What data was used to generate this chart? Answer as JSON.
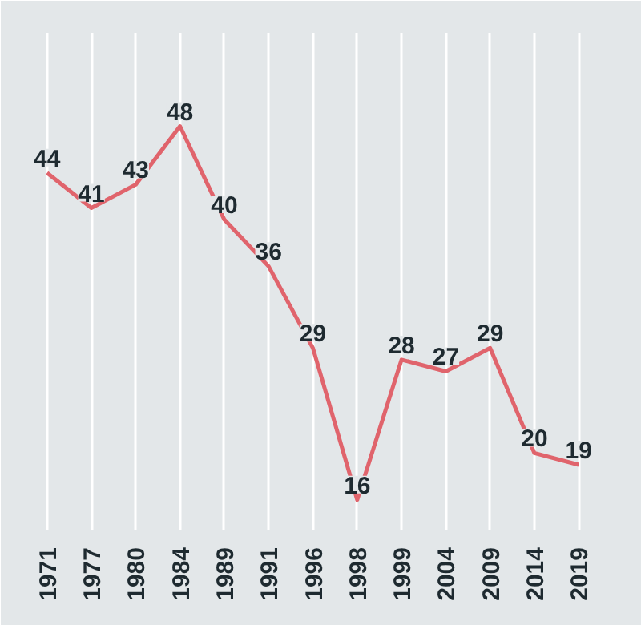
{
  "chart_data": {
    "type": "line",
    "categories": [
      "1971",
      "1977",
      "1980",
      "1984",
      "1989",
      "1991",
      "1996",
      "1998",
      "1999",
      "2004",
      "2009",
      "2014",
      "2019"
    ],
    "series": [
      {
        "color": "#e0646c",
        "values": [
          44,
          41,
          43,
          48,
          40,
          36,
          29,
          16,
          28,
          27,
          29,
          20,
          19
        ]
      }
    ],
    "data_labels": true,
    "grid": "x",
    "marker": "none",
    "line_style": "solid"
  }
}
